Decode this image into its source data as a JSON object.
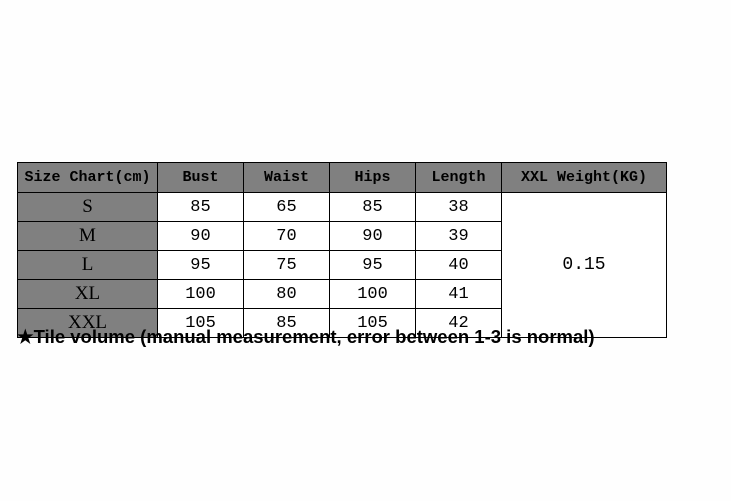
{
  "table": {
    "columns": [
      "Size Chart(cm)",
      "Bust",
      "Waist",
      "Hips",
      "Length",
      "XXL Weight(KG)"
    ],
    "rows": [
      {
        "size": "S",
        "bust": "85",
        "waist": "65",
        "hips": "85",
        "length": "38"
      },
      {
        "size": "M",
        "bust": "90",
        "waist": "70",
        "hips": "90",
        "length": "39"
      },
      {
        "size": "L",
        "bust": "95",
        "waist": "75",
        "hips": "95",
        "length": "40"
      },
      {
        "size": "XL",
        "bust": "100",
        "waist": "80",
        "hips": "100",
        "length": "41"
      },
      {
        "size": "XXL",
        "bust": "105",
        "waist": "85",
        "hips": "105",
        "length": "42"
      }
    ],
    "weight_value": "0.15",
    "header_bg": "#808080",
    "size_col_bg": "#808080",
    "cell_bg": "#ffffff",
    "border_color": "#000000"
  },
  "footnote": "★Tile volume (manual measurement, error between 1-3 is normal)"
}
